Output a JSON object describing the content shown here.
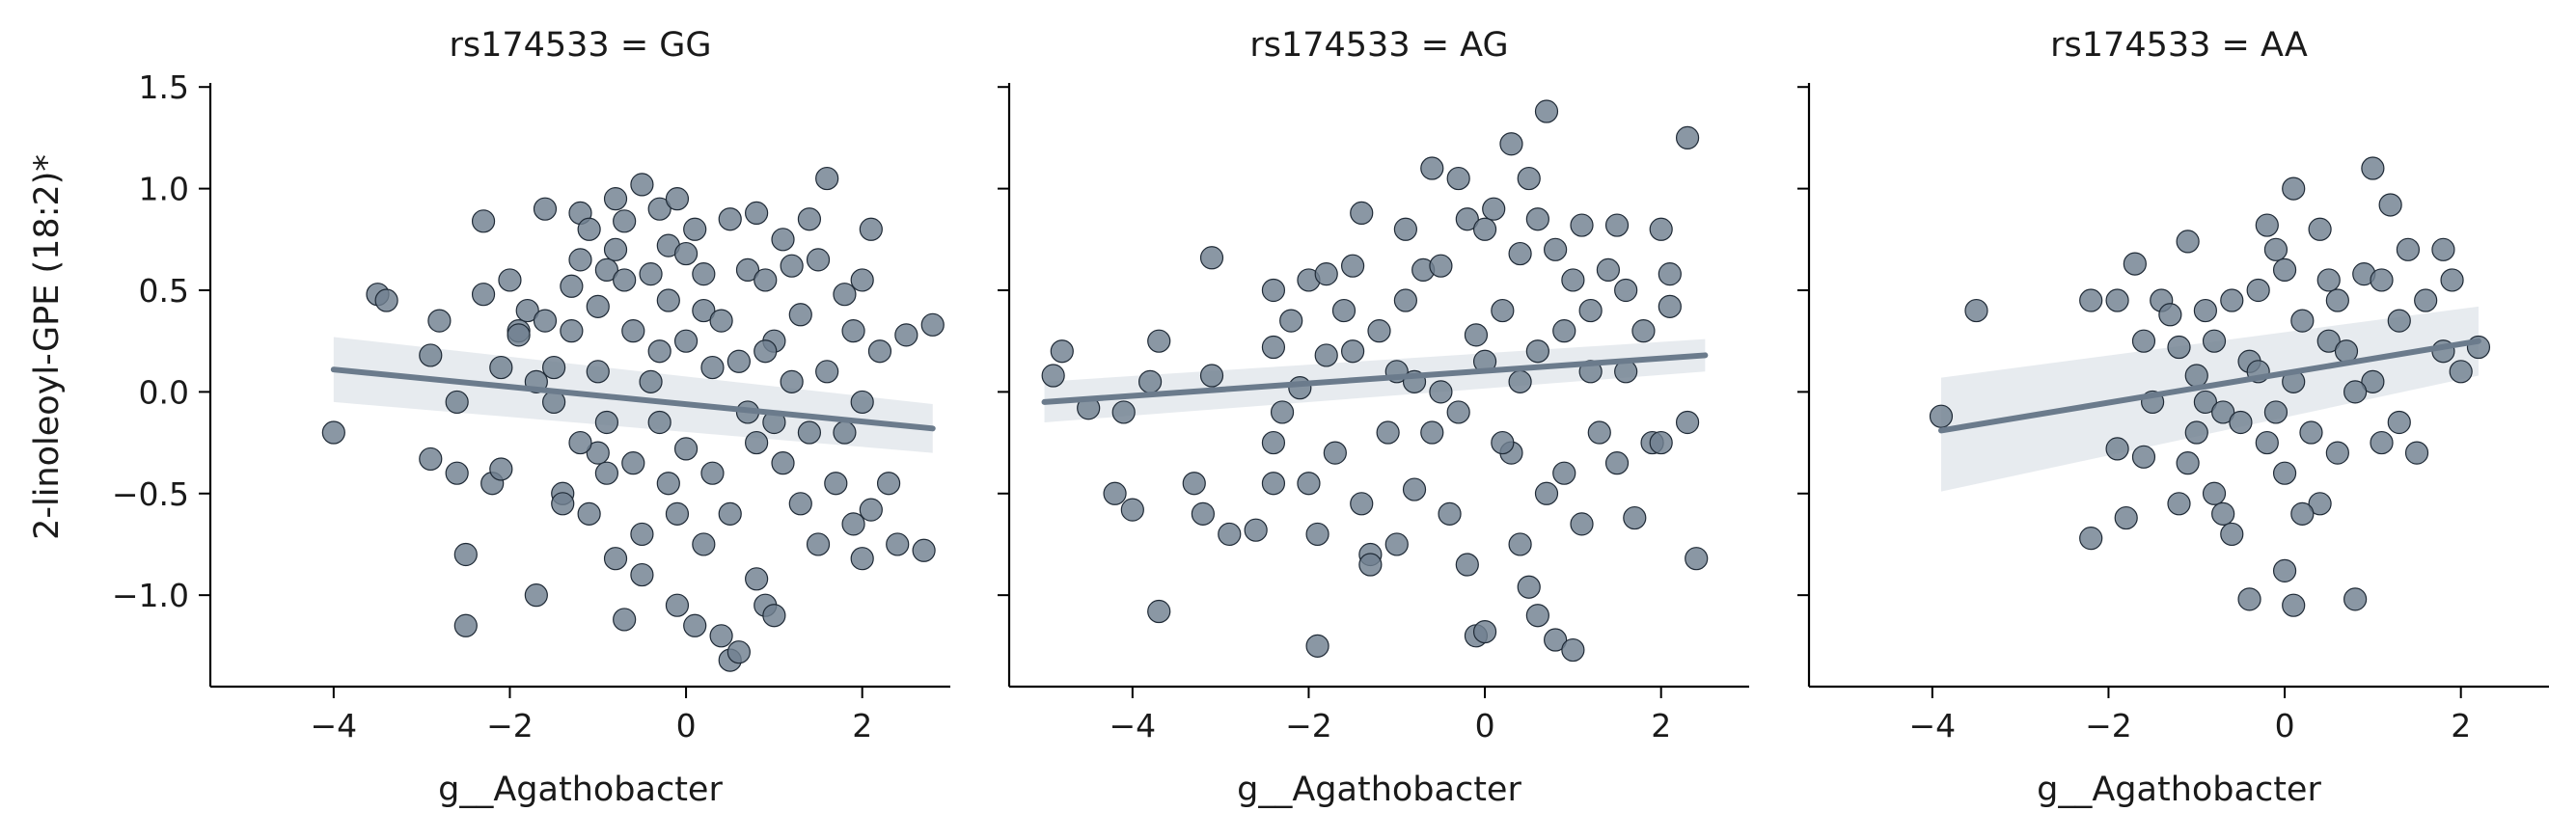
{
  "figure": {
    "ylabel": "2-linoleoyl-GPE (18:2)*",
    "colors": {
      "point": "#708090",
      "line": "#6b7b8c",
      "ci": "#e3e8ec",
      "axis": "#000000"
    }
  },
  "chart_data": [
    {
      "type": "scatter",
      "title": "rs174533 = GG",
      "xlabel": "g__Agathobacter",
      "ylabel": "2-linoleoyl-GPE (18:2)*",
      "xlim": [
        -5.4,
        3.0
      ],
      "ylim": [
        -1.45,
        1.52
      ],
      "xticks": [
        -4,
        -2,
        0,
        2
      ],
      "yticks": [
        -1.0,
        -0.5,
        0.0,
        0.5,
        1.0,
        1.5
      ],
      "ytick_labels": [
        "−1.0",
        "−0.5",
        "0.0",
        "0.5",
        "1.0",
        "1.5"
      ],
      "xtick_labels": [
        "−4",
        "−2",
        "0",
        "2"
      ],
      "regression": {
        "x": [
          -4.0,
          2.8
        ],
        "y": [
          0.11,
          -0.18
        ],
        "ci_low": [
          -0.05,
          -0.3
        ],
        "ci_high": [
          0.27,
          -0.06
        ]
      },
      "points": [
        [
          -4.0,
          -0.2
        ],
        [
          -3.5,
          0.48
        ],
        [
          -3.4,
          0.45
        ],
        [
          -2.9,
          0.18
        ],
        [
          -2.9,
          -0.33
        ],
        [
          -2.8,
          0.35
        ],
        [
          -2.6,
          -0.05
        ],
        [
          -2.5,
          -0.8
        ],
        [
          -2.5,
          -1.15
        ],
        [
          -2.3,
          0.84
        ],
        [
          -2.3,
          0.48
        ],
        [
          -2.2,
          -0.45
        ],
        [
          -2.1,
          -0.38
        ],
        [
          -2.1,
          0.12
        ],
        [
          -2.0,
          0.55
        ],
        [
          -1.9,
          0.3
        ],
        [
          -1.9,
          0.28
        ],
        [
          -1.8,
          0.4
        ],
        [
          -1.7,
          -1.0
        ],
        [
          -1.6,
          0.9
        ],
        [
          -1.6,
          0.35
        ],
        [
          -1.5,
          0.12
        ],
        [
          -1.4,
          -0.5
        ],
        [
          -1.4,
          -0.55
        ],
        [
          -1.3,
          0.52
        ],
        [
          -1.3,
          0.3
        ],
        [
          -1.2,
          0.88
        ],
        [
          -1.2,
          0.65
        ],
        [
          -1.1,
          0.8
        ],
        [
          -1.1,
          -0.6
        ],
        [
          -1.0,
          0.42
        ],
        [
          -1.0,
          0.1
        ],
        [
          -1.0,
          -0.3
        ],
        [
          -0.9,
          0.6
        ],
        [
          -0.9,
          -0.4
        ],
        [
          -0.8,
          0.95
        ],
        [
          -0.8,
          0.7
        ],
        [
          -0.8,
          -0.82
        ],
        [
          -0.7,
          0.84
        ],
        [
          -0.7,
          0.55
        ],
        [
          -0.7,
          -1.12
        ],
        [
          -0.6,
          0.3
        ],
        [
          -0.5,
          1.02
        ],
        [
          -0.5,
          -0.9
        ],
        [
          -0.4,
          0.58
        ],
        [
          -0.3,
          0.9
        ],
        [
          -0.3,
          -0.15
        ],
        [
          -0.2,
          0.72
        ],
        [
          -0.2,
          0.45
        ],
        [
          -0.1,
          0.95
        ],
        [
          -0.1,
          -0.6
        ],
        [
          -0.1,
          -1.05
        ],
        [
          0.0,
          0.68
        ],
        [
          0.0,
          0.25
        ],
        [
          0.0,
          -0.28
        ],
        [
          0.1,
          0.8
        ],
        [
          0.1,
          -1.15
        ],
        [
          0.2,
          0.4
        ],
        [
          0.2,
          -0.75
        ],
        [
          0.3,
          0.12
        ],
        [
          0.4,
          -1.2
        ],
        [
          0.5,
          0.85
        ],
        [
          0.5,
          -1.32
        ],
        [
          0.6,
          -1.28
        ],
        [
          0.7,
          0.6
        ],
        [
          0.7,
          -0.1
        ],
        [
          0.8,
          0.88
        ],
        [
          0.8,
          -0.92
        ],
        [
          0.9,
          0.55
        ],
        [
          0.9,
          -1.05
        ],
        [
          1.0,
          0.25
        ],
        [
          1.0,
          -1.1
        ],
        [
          1.1,
          0.75
        ],
        [
          1.1,
          -0.35
        ],
        [
          1.2,
          0.62
        ],
        [
          1.3,
          0.38
        ],
        [
          1.3,
          -0.55
        ],
        [
          1.4,
          0.85
        ],
        [
          1.5,
          0.65
        ],
        [
          1.5,
          -0.75
        ],
        [
          1.6,
          1.05
        ],
        [
          1.6,
          0.1
        ],
        [
          1.7,
          -0.45
        ],
        [
          1.8,
          0.48
        ],
        [
          1.8,
          -0.2
        ],
        [
          1.9,
          0.3
        ],
        [
          1.9,
          -0.65
        ],
        [
          2.0,
          0.55
        ],
        [
          2.0,
          -0.82
        ],
        [
          2.0,
          -0.05
        ],
        [
          2.1,
          0.8
        ],
        [
          2.1,
          -0.58
        ],
        [
          2.2,
          0.2
        ],
        [
          2.3,
          -0.45
        ],
        [
          2.4,
          -0.75
        ],
        [
          2.5,
          0.28
        ],
        [
          2.7,
          -0.78
        ],
        [
          2.8,
          0.33
        ],
        [
          -1.5,
          -0.05
        ],
        [
          -1.2,
          -0.25
        ],
        [
          -0.9,
          -0.15
        ],
        [
          -0.6,
          -0.35
        ],
        [
          -0.4,
          0.05
        ],
        [
          -0.2,
          -0.45
        ],
        [
          0.3,
          -0.4
        ],
        [
          0.4,
          0.35
        ],
        [
          0.6,
          0.15
        ],
        [
          0.8,
          -0.25
        ],
        [
          1.0,
          -0.15
        ],
        [
          1.2,
          0.05
        ],
        [
          1.4,
          -0.2
        ],
        [
          -0.3,
          0.2
        ],
        [
          0.2,
          0.58
        ],
        [
          0.5,
          -0.6
        ],
        [
          -0.5,
          -0.7
        ],
        [
          0.9,
          0.2
        ],
        [
          -1.7,
          0.05
        ],
        [
          -2.6,
          -0.4
        ]
      ]
    },
    {
      "type": "scatter",
      "title": "rs174533 = AG",
      "xlabel": "g__Agathobacter",
      "xlim": [
        -5.4,
        3.0
      ],
      "ylim": [
        -1.45,
        1.52
      ],
      "xticks": [
        -4,
        -2,
        0,
        2
      ],
      "xtick_labels": [
        "−4",
        "−2",
        "0",
        "2"
      ],
      "regression": {
        "x": [
          -5.0,
          2.5
        ],
        "y": [
          -0.05,
          0.18
        ],
        "ci_low": [
          -0.15,
          0.1
        ],
        "ci_high": [
          0.05,
          0.26
        ]
      },
      "points": [
        [
          -4.9,
          0.08
        ],
        [
          -4.8,
          0.2
        ],
        [
          -4.5,
          -0.08
        ],
        [
          -4.2,
          -0.5
        ],
        [
          -4.1,
          -0.1
        ],
        [
          -4.0,
          -0.58
        ],
        [
          -3.8,
          0.05
        ],
        [
          -3.7,
          -1.08
        ],
        [
          -3.7,
          0.25
        ],
        [
          -3.3,
          -0.45
        ],
        [
          -3.2,
          -0.6
        ],
        [
          -3.1,
          0.66
        ],
        [
          -3.1,
          0.08
        ],
        [
          -2.9,
          -0.7
        ],
        [
          -2.6,
          -0.68
        ],
        [
          -2.4,
          0.5
        ],
        [
          -2.4,
          0.22
        ],
        [
          -2.4,
          -0.45
        ],
        [
          -2.4,
          -0.25
        ],
        [
          -2.2,
          0.35
        ],
        [
          -2.1,
          0.02
        ],
        [
          -2.0,
          0.55
        ],
        [
          -2.0,
          -0.45
        ],
        [
          -1.9,
          -1.25
        ],
        [
          -1.9,
          -0.7
        ],
        [
          -1.8,
          0.58
        ],
        [
          -1.8,
          0.18
        ],
        [
          -1.7,
          -0.3
        ],
        [
          -1.6,
          0.4
        ],
        [
          -1.5,
          0.62
        ],
        [
          -1.4,
          0.88
        ],
        [
          -1.4,
          -0.55
        ],
        [
          -1.3,
          -0.8
        ],
        [
          -1.3,
          -0.85
        ],
        [
          -1.2,
          0.3
        ],
        [
          -1.1,
          -0.2
        ],
        [
          -1.0,
          -0.75
        ],
        [
          -0.9,
          0.8
        ],
        [
          -0.9,
          0.45
        ],
        [
          -0.8,
          -0.48
        ],
        [
          -0.7,
          0.6
        ],
        [
          -0.6,
          1.1
        ],
        [
          -0.5,
          0.62
        ],
        [
          -0.4,
          -0.6
        ],
        [
          -0.3,
          1.05
        ],
        [
          -0.2,
          0.85
        ],
        [
          -0.2,
          -0.85
        ],
        [
          -0.1,
          0.28
        ],
        [
          -0.1,
          -1.2
        ],
        [
          0.0,
          0.8
        ],
        [
          0.0,
          -1.18
        ],
        [
          0.1,
          0.9
        ],
        [
          0.2,
          0.4
        ],
        [
          0.3,
          1.22
        ],
        [
          0.3,
          -0.3
        ],
        [
          0.4,
          0.68
        ],
        [
          0.4,
          -0.75
        ],
        [
          0.5,
          1.05
        ],
        [
          0.5,
          -0.96
        ],
        [
          0.6,
          0.85
        ],
        [
          0.6,
          -1.1
        ],
        [
          0.7,
          1.38
        ],
        [
          0.7,
          -0.5
        ],
        [
          0.8,
          0.7
        ],
        [
          0.8,
          -1.22
        ],
        [
          0.9,
          0.3
        ],
        [
          1.0,
          -1.27
        ],
        [
          1.0,
          0.55
        ],
        [
          1.1,
          0.82
        ],
        [
          1.1,
          -0.65
        ],
        [
          1.2,
          0.4
        ],
        [
          1.3,
          -0.2
        ],
        [
          1.4,
          0.6
        ],
        [
          1.5,
          -0.35
        ],
        [
          1.5,
          0.82
        ],
        [
          1.6,
          0.1
        ],
        [
          1.7,
          -0.62
        ],
        [
          1.8,
          0.3
        ],
        [
          1.9,
          -0.25
        ],
        [
          2.0,
          0.8
        ],
        [
          2.0,
          -0.25
        ],
        [
          2.1,
          0.42
        ],
        [
          2.1,
          0.58
        ],
        [
          2.3,
          -0.15
        ],
        [
          2.3,
          1.25
        ],
        [
          2.4,
          -0.82
        ],
        [
          -0.5,
          0.0
        ],
        [
          -0.3,
          -0.1
        ],
        [
          0.0,
          0.15
        ],
        [
          0.2,
          -0.25
        ],
        [
          -1.0,
          0.1
        ],
        [
          -0.6,
          -0.2
        ],
        [
          0.6,
          0.2
        ],
        [
          0.9,
          -0.4
        ],
        [
          1.2,
          0.1
        ],
        [
          -1.5,
          0.2
        ],
        [
          -0.8,
          0.05
        ],
        [
          0.4,
          0.05
        ],
        [
          1.6,
          0.5
        ],
        [
          -2.3,
          -0.1
        ]
      ]
    },
    {
      "type": "scatter",
      "title": "rs174533 = AA",
      "xlabel": "g__Agathobacter",
      "xlim": [
        -5.4,
        3.0
      ],
      "ylim": [
        -1.45,
        1.52
      ],
      "xticks": [
        -4,
        -2,
        0,
        2
      ],
      "xtick_labels": [
        "−4",
        "−2",
        "0",
        "2"
      ],
      "regression": {
        "x": [
          -3.9,
          2.2
        ],
        "y": [
          -0.19,
          0.25
        ],
        "ci_low": [
          -0.49,
          0.08
        ],
        "ci_high": [
          0.07,
          0.42
        ]
      },
      "points": [
        [
          -3.9,
          -0.12
        ],
        [
          -3.5,
          0.4
        ],
        [
          -2.2,
          0.45
        ],
        [
          -2.2,
          -0.72
        ],
        [
          -1.9,
          -0.28
        ],
        [
          -1.9,
          0.45
        ],
        [
          -1.8,
          -0.62
        ],
        [
          -1.7,
          0.63
        ],
        [
          -1.6,
          0.25
        ],
        [
          -1.6,
          -0.32
        ],
        [
          -1.4,
          0.45
        ],
        [
          -1.3,
          0.38
        ],
        [
          -1.2,
          0.22
        ],
        [
          -1.2,
          -0.55
        ],
        [
          -1.1,
          0.74
        ],
        [
          -1.1,
          -0.35
        ],
        [
          -1.0,
          -0.2
        ],
        [
          -1.0,
          0.08
        ],
        [
          -0.9,
          -0.05
        ],
        [
          -0.8,
          -0.5
        ],
        [
          -0.8,
          0.25
        ],
        [
          -0.7,
          -0.6
        ],
        [
          -0.7,
          -0.1
        ],
        [
          -0.6,
          -0.7
        ],
        [
          -0.6,
          0.45
        ],
        [
          -0.5,
          -0.15
        ],
        [
          -0.4,
          -1.02
        ],
        [
          -0.4,
          0.15
        ],
        [
          -0.3,
          0.5
        ],
        [
          -0.2,
          -0.25
        ],
        [
          -0.2,
          0.82
        ],
        [
          -0.1,
          0.7
        ],
        [
          -0.1,
          -0.1
        ],
        [
          0.0,
          -0.4
        ],
        [
          0.0,
          0.6
        ],
        [
          0.0,
          -0.88
        ],
        [
          0.1,
          0.05
        ],
        [
          0.1,
          -1.05
        ],
        [
          0.1,
          1.0
        ],
        [
          0.2,
          0.35
        ],
        [
          0.3,
          -0.2
        ],
        [
          0.4,
          0.8
        ],
        [
          0.4,
          -0.55
        ],
        [
          0.5,
          0.25
        ],
        [
          0.6,
          0.45
        ],
        [
          0.6,
          -0.3
        ],
        [
          0.7,
          0.2
        ],
        [
          0.8,
          -1.02
        ],
        [
          0.9,
          0.58
        ],
        [
          1.0,
          1.1
        ],
        [
          1.0,
          0.05
        ],
        [
          1.1,
          0.55
        ],
        [
          1.1,
          -0.25
        ],
        [
          1.2,
          0.92
        ],
        [
          1.3,
          -0.15
        ],
        [
          1.3,
          0.35
        ],
        [
          1.4,
          0.7
        ],
        [
          1.5,
          -0.3
        ],
        [
          1.6,
          0.45
        ],
        [
          1.8,
          0.7
        ],
        [
          1.8,
          0.2
        ],
        [
          1.9,
          0.55
        ],
        [
          2.0,
          0.1
        ],
        [
          2.2,
          0.22
        ],
        [
          -0.3,
          0.1
        ],
        [
          0.2,
          -0.6
        ],
        [
          -1.5,
          -0.05
        ],
        [
          0.8,
          0.0
        ],
        [
          0.5,
          0.55
        ],
        [
          -0.9,
          0.4
        ]
      ]
    }
  ]
}
